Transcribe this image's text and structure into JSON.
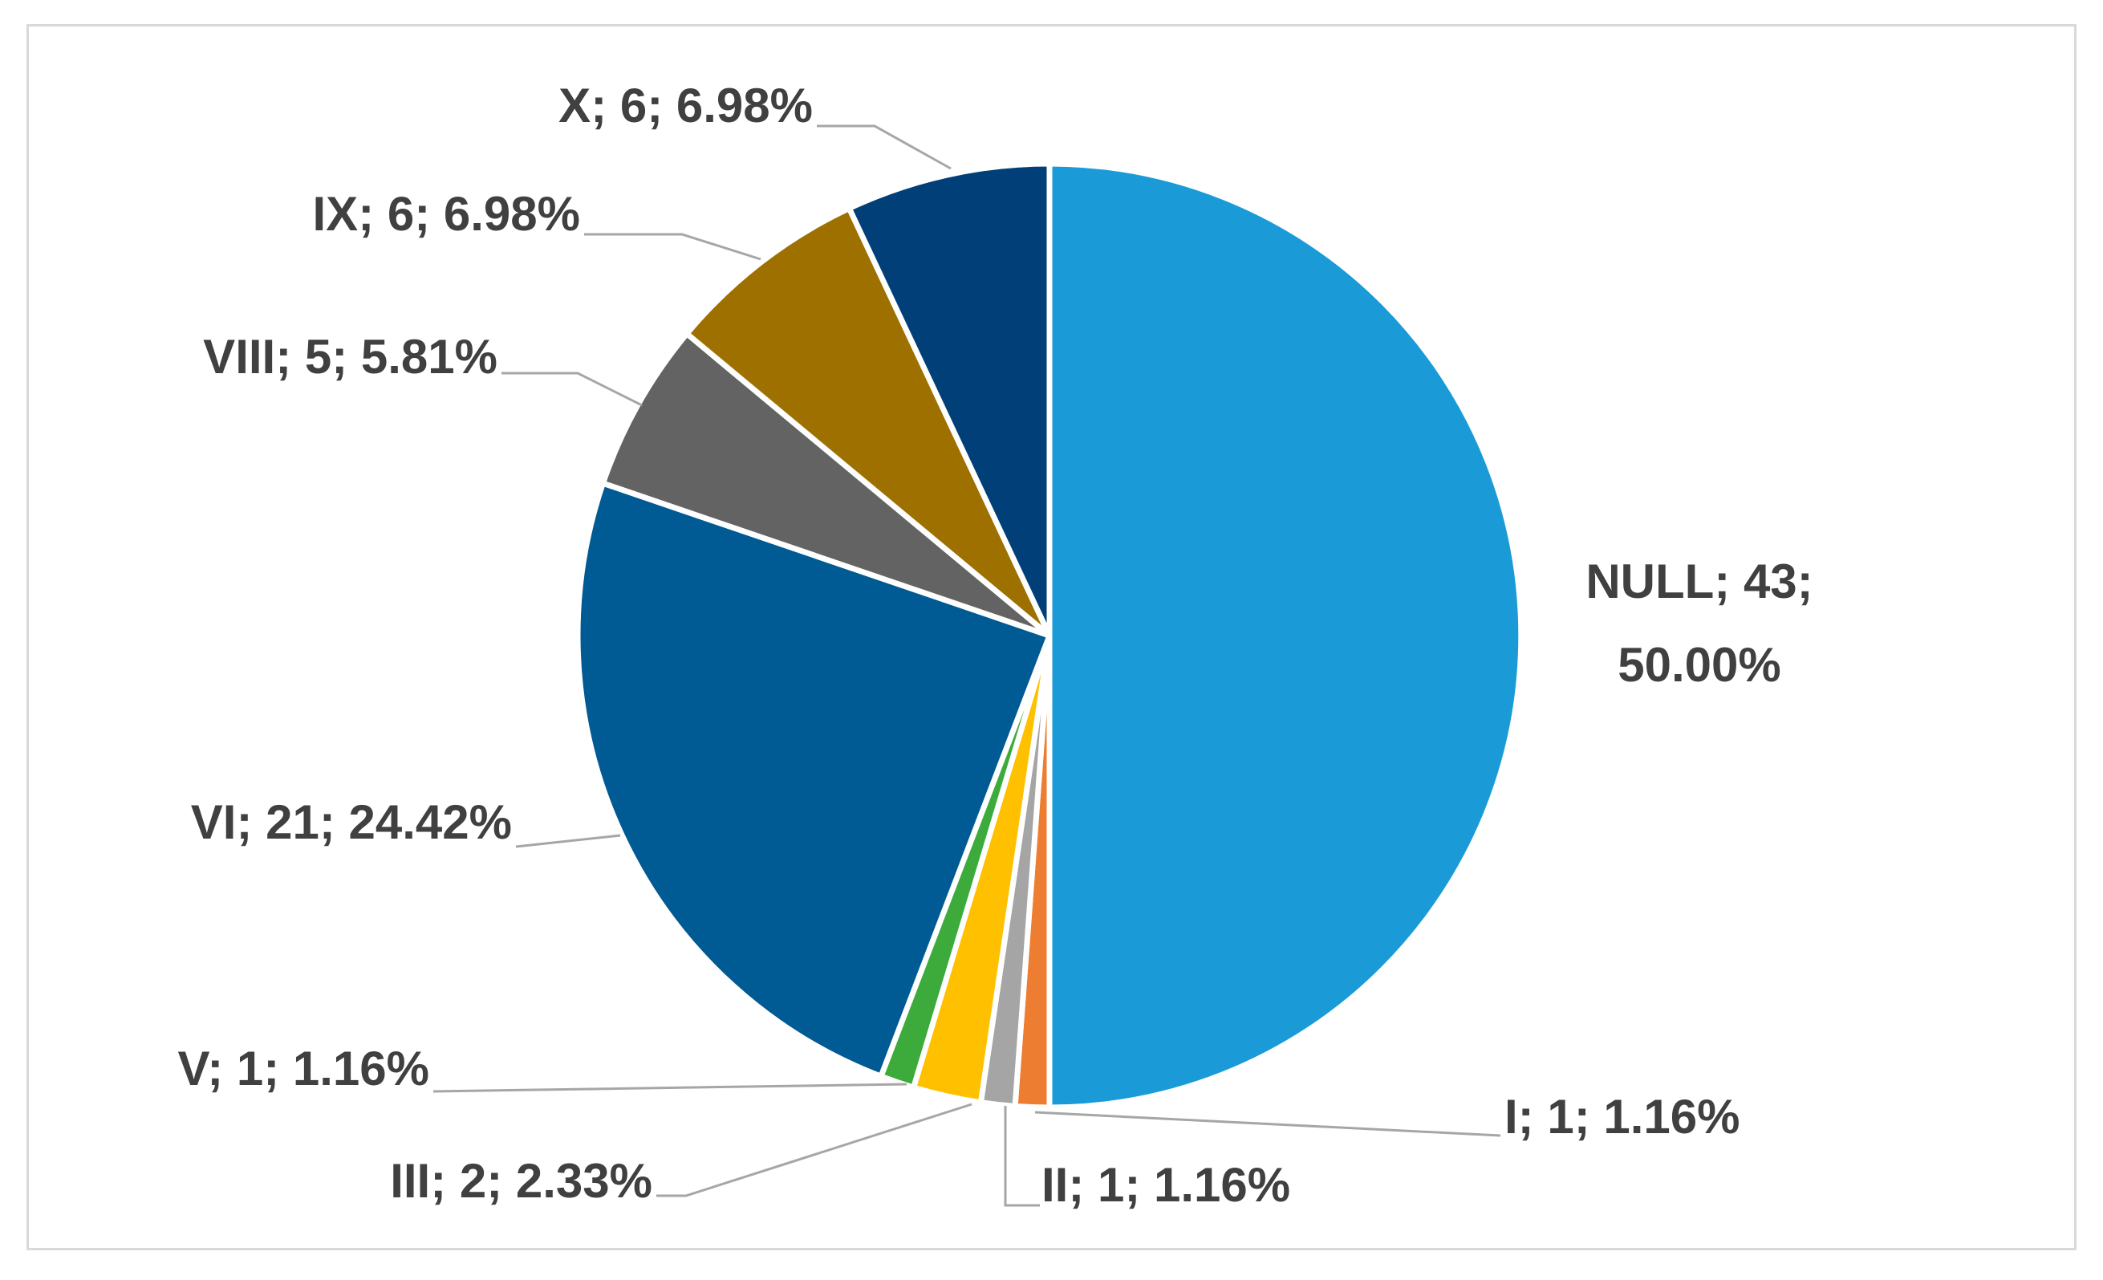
{
  "chart_data": {
    "type": "pie",
    "title": "",
    "legend": "none",
    "slices": [
      {
        "name": "NULL",
        "value": 43,
        "percent": "50.00%",
        "color": "#1a9bd7",
        "label_lines": [
          "NULL; 43;",
          "50.00%"
        ]
      },
      {
        "name": "I",
        "value": 1,
        "percent": "1.16%",
        "color": "#ed7d31",
        "label_lines": [
          "I; 1; 1.16%"
        ]
      },
      {
        "name": "II",
        "value": 1,
        "percent": "1.16%",
        "color": "#a5a5a5",
        "label_lines": [
          "II; 1; 1.16%"
        ]
      },
      {
        "name": "III",
        "value": 2,
        "percent": "2.33%",
        "color": "#ffc000",
        "label_lines": [
          "III; 2; 2.33%"
        ]
      },
      {
        "name": "V",
        "value": 1,
        "percent": "1.16%",
        "color": "#3cab3c",
        "label_lines": [
          "V; 1; 1.16%"
        ]
      },
      {
        "name": "VI",
        "value": 21,
        "percent": "24.42%",
        "color": "#005a94",
        "label_lines": [
          "VI; 21; 24.42%"
        ]
      },
      {
        "name": "VIII",
        "value": 5,
        "percent": "5.81%",
        "color": "#636363",
        "label_lines": [
          "VIII; 5; 5.81%"
        ]
      },
      {
        "name": "IX",
        "value": 6,
        "percent": "6.98%",
        "color": "#9e7000",
        "label_lines": [
          "IX; 6; 6.98%"
        ]
      },
      {
        "name": "X",
        "value": 6,
        "percent": "6.98%",
        "color": "#003f78",
        "label_lines": [
          "X; 6; 6.98%"
        ]
      }
    ]
  }
}
